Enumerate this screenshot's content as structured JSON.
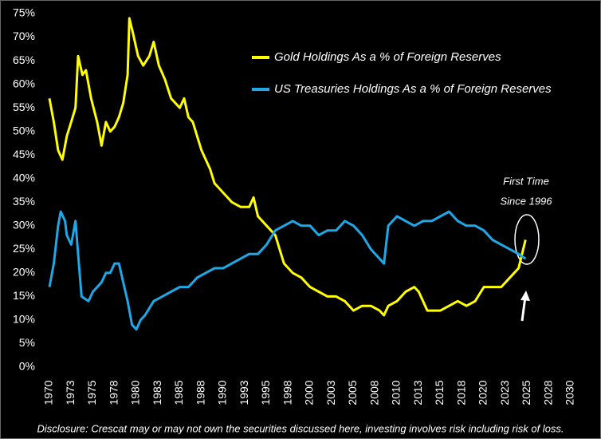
{
  "chart_data": {
    "type": "line",
    "annotations": [
      "First Time",
      "Since 1996"
    ],
    "footnote": "Disclosure: Crescat may or may not own the securities discussed here, investing involves risk including risk of loss.",
    "xlim": [
      1970,
      2030
    ],
    "xticks": [
      1970,
      {
        "value": 1972.5,
        "label": "1973"
      },
      1975,
      {
        "value": 1977.5,
        "label": "1978"
      },
      1980,
      {
        "value": 1982.5,
        "label": "1983"
      },
      1985,
      {
        "value": 1987.5,
        "label": "1988"
      },
      1990,
      {
        "value": 1992.5,
        "label": "1993"
      },
      1995,
      {
        "value": 1997.5,
        "label": "1998"
      },
      2000,
      {
        "value": 2002.5,
        "label": "2003"
      },
      2005,
      {
        "value": 2007.5,
        "label": "2008"
      },
      2010,
      {
        "value": 2012.5,
        "label": "2013"
      },
      2015,
      {
        "value": 2017.5,
        "label": "2018"
      },
      2020,
      {
        "value": 2022.5,
        "label": "2023"
      },
      2025,
      {
        "value": 2027.5,
        "label": "2028"
      },
      2030
    ],
    "ylim": [
      0,
      75
    ],
    "yticks": [
      {
        "value": 0,
        "label": "0%"
      },
      {
        "value": 5,
        "label": "5%"
      },
      {
        "value": 10,
        "label": "10%"
      },
      {
        "value": 15,
        "label": "15%"
      },
      {
        "value": 20,
        "label": "20%"
      },
      {
        "value": 25,
        "label": "25%"
      },
      {
        "value": 30,
        "label": "30%"
      },
      {
        "value": 35,
        "label": "35%"
      },
      {
        "value": 40,
        "label": "40%"
      },
      {
        "value": 45,
        "label": "45%"
      },
      {
        "value": 50,
        "label": "50%"
      },
      {
        "value": 55,
        "label": "55%"
      },
      {
        "value": 60,
        "label": "60%"
      },
      {
        "value": 65,
        "label": "65%"
      },
      {
        "value": 70,
        "label": "70%"
      },
      {
        "value": 75,
        "label": "75%"
      }
    ],
    "grid": false,
    "series": [
      {
        "name": "Gold Holdings As a % of Foreign Reserves",
        "color": "#ffff00",
        "x": [
          1970,
          1970.5,
          1971,
          1971.5,
          1972,
          1972.5,
          1973,
          1973.3,
          1973.8,
          1974.2,
          1974.8,
          1975.5,
          1976,
          1976.5,
          1977,
          1977.5,
          1978,
          1978.5,
          1979,
          1979.2,
          1979.6,
          1980.2,
          1980.8,
          1981.5,
          1982,
          1982.6,
          1983.3,
          1984,
          1984.5,
          1985,
          1985.5,
          1986,
          1986.5,
          1987,
          1987.5,
          1988,
          1988.5,
          1989,
          1989.5,
          1990,
          1990.5,
          1991,
          1992,
          1993,
          1993.5,
          1994,
          1995,
          1996,
          1996.5,
          1997,
          1998,
          1999,
          2000,
          2001,
          2002,
          2003,
          2004,
          2005,
          2006,
          2007,
          2008,
          2008.5,
          2009,
          2010,
          2011,
          2012,
          2012.5,
          2013,
          2013.5,
          2014,
          2015,
          2016,
          2017,
          2018,
          2019,
          2020,
          2021,
          2022,
          2023,
          2024,
          2024.8
        ],
        "values": [
          57,
          52,
          46,
          44,
          49,
          52,
          55,
          66,
          62,
          63,
          57,
          52,
          47,
          52,
          50,
          51,
          53,
          56,
          62,
          74,
          71,
          66,
          64,
          66,
          69,
          64,
          61,
          57,
          56,
          55,
          57,
          53,
          52,
          49,
          46,
          44,
          42,
          39,
          38,
          37,
          36,
          35,
          34,
          34,
          36,
          32,
          30,
          28,
          25,
          22,
          20,
          19,
          17,
          16,
          15,
          15,
          14,
          12,
          13,
          13,
          12,
          11,
          13,
          14,
          16,
          17,
          16,
          14,
          12,
          12,
          12,
          13,
          14,
          13,
          14,
          17,
          17,
          17,
          19,
          21,
          27
        ]
      },
      {
        "name": "US Treasuries Holdings As a % of Foreign Reserves",
        "color": "#1fa8e8",
        "x": [
          1970,
          1970.5,
          1971,
          1971.3,
          1971.8,
          1972,
          1972.5,
          1973,
          1973.3,
          1973.7,
          1974.5,
          1975,
          1976,
          1976.5,
          1977,
          1977.5,
          1978,
          1978.5,
          1979,
          1979.5,
          1980,
          1980.5,
          1981,
          1982,
          1983,
          1984,
          1985,
          1986,
          1987,
          1988,
          1989,
          1990,
          1991,
          1992,
          1993,
          1994,
          1995,
          1996,
          1997,
          1998,
          1999,
          2000,
          2001,
          2002,
          2003,
          2004,
          2005,
          2006,
          2007,
          2008,
          2008.5,
          2009,
          2010,
          2011,
          2012,
          2013,
          2014,
          2015,
          2016,
          2017,
          2018,
          2019,
          2020,
          2021,
          2022,
          2023,
          2024,
          2024.8
        ],
        "values": [
          17,
          22,
          30,
          33,
          31,
          28,
          26,
          31,
          24,
          15,
          14,
          16,
          18,
          20,
          20,
          22,
          22,
          18,
          14,
          9,
          8,
          10,
          11,
          14,
          15,
          16,
          17,
          17,
          19,
          20,
          21,
          21,
          22,
          23,
          24,
          24,
          26,
          29,
          30,
          31,
          30,
          30,
          28,
          29,
          29,
          31,
          30,
          28,
          25,
          23,
          22,
          30,
          32,
          31,
          30,
          31,
          31,
          32,
          33,
          31,
          30,
          30,
          29,
          27,
          26,
          25,
          24,
          23
        ]
      }
    ]
  }
}
